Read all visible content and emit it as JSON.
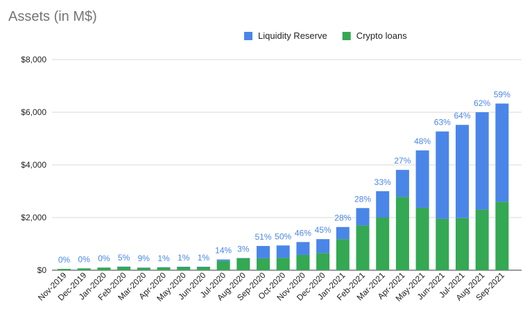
{
  "chart_data": {
    "type": "bar",
    "stacked": true,
    "title": "Assets (in M$)",
    "xlabel": "",
    "ylabel": "",
    "ylim": [
      0,
      8000
    ],
    "yticks": [
      "$0",
      "$2,000",
      "$4,000",
      "$6,000",
      "$8,000"
    ],
    "ytick_values": [
      0,
      2000,
      4000,
      6000,
      8000
    ],
    "grid": true,
    "legend_position": "top-right",
    "categories": [
      "Nov-2019",
      "Dec-2019",
      "Jan-2020",
      "Feb-2020",
      "Mar-2020",
      "Apr-2020",
      "May-2020",
      "Jun-2020",
      "Jul-2020",
      "Aug-2020",
      "Sep-2020",
      "Oct-2020",
      "Nov-2020",
      "Dec-2020",
      "Jan-2021",
      "Feb-2021",
      "Mar-2021",
      "Apr-2021",
      "May-2021",
      "Jun-2021",
      "Jul-2021",
      "Aug-2021",
      "Sep-2021"
    ],
    "series": [
      {
        "name": "Crypto loans",
        "color": "#34a853",
        "values": [
          50,
          70,
          100,
          130,
          90,
          110,
          130,
          130,
          350,
          450,
          450,
          470,
          580,
          650,
          1180,
          1700,
          2000,
          2780,
          2370,
          1950,
          1980,
          2300,
          2600
        ]
      },
      {
        "name": "Liquidity Reserve",
        "color": "#4a86e8",
        "values": [
          0,
          0,
          0,
          7,
          9,
          1,
          1,
          1,
          57,
          14,
          470,
          470,
          490,
          530,
          460,
          660,
          1000,
          1030,
          2180,
          3320,
          3540,
          3700,
          3730
        ]
      }
    ],
    "legend_order": [
      "Liquidity Reserve",
      "Crypto loans"
    ],
    "annotations": [
      "0%",
      "0%",
      "0%",
      "5%",
      "9%",
      "1%",
      "1%",
      "1%",
      "14%",
      "3%",
      "51%",
      "50%",
      "46%",
      "45%",
      "28%",
      "28%",
      "33%",
      "27%",
      "48%",
      "63%",
      "64%",
      "62%",
      "59%"
    ],
    "annotation_color": "#4a86e8"
  }
}
